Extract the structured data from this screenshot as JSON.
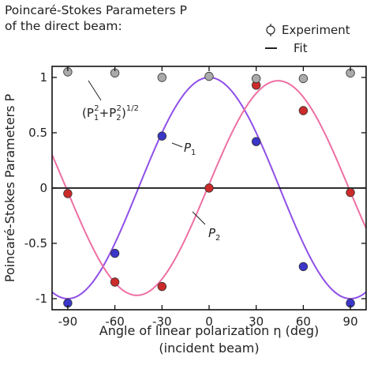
{
  "chart_data": {
    "type": "scatter",
    "title": "Poincaré-Stokes Parameters P",
    "subtitle": "of the direct beam:",
    "xlabel": "Angle of linear polarization η (deg)",
    "xlabel2": "(incident beam)",
    "ylabel": "Poincaré-Stokes Parameters P",
    "xlim": [
      -100,
      100
    ],
    "ylim": [
      -1.1,
      1.1
    ],
    "x_ticks": [
      -90,
      -60,
      -30,
      0,
      30,
      60,
      90
    ],
    "x_tick_labels": [
      "-90",
      "-60",
      "-30",
      "0",
      "30",
      "60",
      "90"
    ],
    "y_ticks": [
      -1,
      -0.5,
      0,
      0.5,
      1
    ],
    "y_tick_labels": [
      "-1",
      "-0.5",
      "0",
      "0.5",
      "1"
    ],
    "grid": false,
    "legend": {
      "placement": "top-right",
      "entries": [
        {
          "label": "Experiment",
          "marker": "circle-errorbar"
        },
        {
          "label": "Fit",
          "marker": "line"
        }
      ]
    },
    "series": [
      {
        "key": "P1",
        "color": "#3a36c8",
        "fit_color": "#8f4fe8",
        "x": [
          -90,
          -60,
          -30,
          30,
          60,
          90
        ],
        "values": [
          -1.04,
          -0.59,
          0.47,
          0.42,
          -0.71,
          -1.04
        ]
      },
      {
        "key": "P2",
        "color": "#cc2a2a",
        "fit_color": "#ee6fa3",
        "x": [
          -90,
          -60,
          -30,
          0,
          30,
          60,
          90
        ],
        "values": [
          -0.05,
          -0.85,
          -0.89,
          0.0,
          0.93,
          0.7,
          -0.04
        ]
      },
      {
        "key": "magnitude",
        "color": "#aaaaaa",
        "x": [
          -90,
          -60,
          -30,
          0,
          30,
          60,
          90
        ],
        "values": [
          1.05,
          1.04,
          1.0,
          1.01,
          0.99,
          0.99,
          1.04
        ]
      }
    ],
    "fits": [
      {
        "series": "P1",
        "form": "a*cos(2*(η-φ))",
        "a": 1.0,
        "phi_deg": 0
      },
      {
        "series": "P2",
        "form": "a*sin(2*(η-φ))",
        "a": 0.97,
        "phi_deg": -1
      }
    ],
    "annotations": {
      "p1": {
        "letter": "P",
        "subscript": "1"
      },
      "p2": {
        "letter": "P",
        "subscript": "2"
      },
      "magnitude": {
        "open": "(P",
        "sub1": "1",
        "sup1": "2",
        "plus": "+P",
        "sub2": "2",
        "sup2": "2",
        "close": ")",
        "exponent": "1/2"
      }
    }
  }
}
